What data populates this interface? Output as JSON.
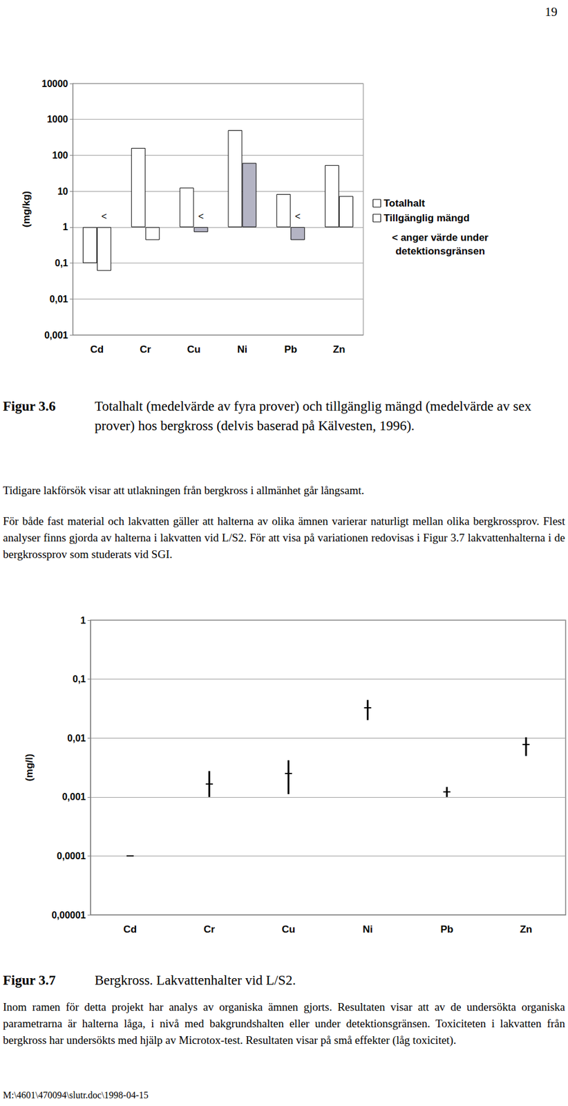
{
  "chart_data": [
    {
      "type": "bar",
      "log": "y",
      "grid": true,
      "legend": "right",
      "y_label": "(mg/kg)",
      "categories": [
        "Cd",
        "Cr",
        "Cu",
        "Ni",
        "Pb",
        "Zn"
      ],
      "ylim": [
        0.001,
        10000
      ],
      "yticks": [
        {
          "value": 0.001,
          "label": "0,001"
        },
        {
          "value": 0.01,
          "label": "0,01"
        },
        {
          "value": 0.1,
          "label": "0,1"
        },
        1,
        10,
        100,
        1000,
        10000
      ],
      "series": [
        {
          "name": "Totalhalt",
          "color": "#ffffff",
          "values": [
            0.1,
            160,
            12.5,
            500,
            8.3,
            53
          ]
        },
        {
          "name": "Tillgänglig mängd",
          "color": "#ffffff",
          "colors": [
            "#ffffff",
            "#ffffff",
            "#b4b4c4",
            "#b4b4c4",
            "#b4b4c4",
            "#ffffff"
          ],
          "values": [
            0.061,
            0.44,
            0.73,
            61,
            0.44,
            7.3
          ],
          "below_detection": [
            true,
            false,
            true,
            false,
            true,
            false
          ],
          "flag_label": "<"
        }
      ],
      "note": "< anger värde under detektionsgränsen"
    },
    {
      "type": "range",
      "log": "y",
      "grid": true,
      "y_label": "(mg/l)",
      "categories": [
        "Cd",
        "Cr",
        "Cu",
        "Ni",
        "Pb",
        "Zn"
      ],
      "ylim": [
        1e-05,
        1
      ],
      "yticks": [
        {
          "value": 1e-05,
          "label": "0,00001"
        },
        {
          "value": 0.0001,
          "label": "0,0001"
        },
        {
          "value": 0.001,
          "label": "0,001"
        },
        {
          "value": 0.01,
          "label": "0,01"
        },
        {
          "value": 0.1,
          "label": "0,1"
        },
        1
      ],
      "values": [
        0.0001,
        0.00166,
        0.0025,
        0.0326,
        0.00122,
        0.00776
      ],
      "min": [
        0.0001,
        0.001,
        0.00112,
        0.0202,
        0.001,
        0.00496
      ],
      "max": [
        0.0001,
        0.00275,
        0.0042,
        0.0443,
        0.00148,
        0.0103
      ],
      "color": "#000000"
    }
  ],
  "document": {
    "page_number": "19",
    "captions": [
      {
        "label": "Figur 3.6",
        "text": "Totalhalt (medelvärde av fyra prover) och tillgänglig mängd (medelvärde av sex prover) hos bergkross (delvis baserad på Kälvesten, 1996)."
      },
      {
        "label": "Figur 3.7",
        "text": "Bergkross. Lakvattenhalter vid L/S2."
      }
    ],
    "paragraphs_after_figure_1": [
      "Tidigare lakförsök visar att utlakningen från bergkross i allmänhet går långsamt.",
      "För både fast material och lakvatten gäller att halterna av olika ämnen varierar naturligt mellan olika bergkrossprov. Flest analyser finns gjorda av halterna i lakvatten vid L/S2. För att visa på variationen redovisas i Figur 3.7 lakvattenhalterna i de bergkrossprov som studerats vid SGI."
    ],
    "paragraphs_after_figure_2": [
      "Inom ramen för detta projekt har analys av organiska ämnen gjorts. Resultaten visar att av de undersökta organiska parametrarna är halterna låga, i nivå med bakgrundshalten eller under detektionsgränsen. Toxiciteten i lakvatten från bergkross har undersökts med hjälp av Microtox-test. Resultaten visar på små effekter (låg toxicitet)."
    ],
    "footer": "M:\\4601\\470094\\slutr.doc\\1998-04-15"
  }
}
